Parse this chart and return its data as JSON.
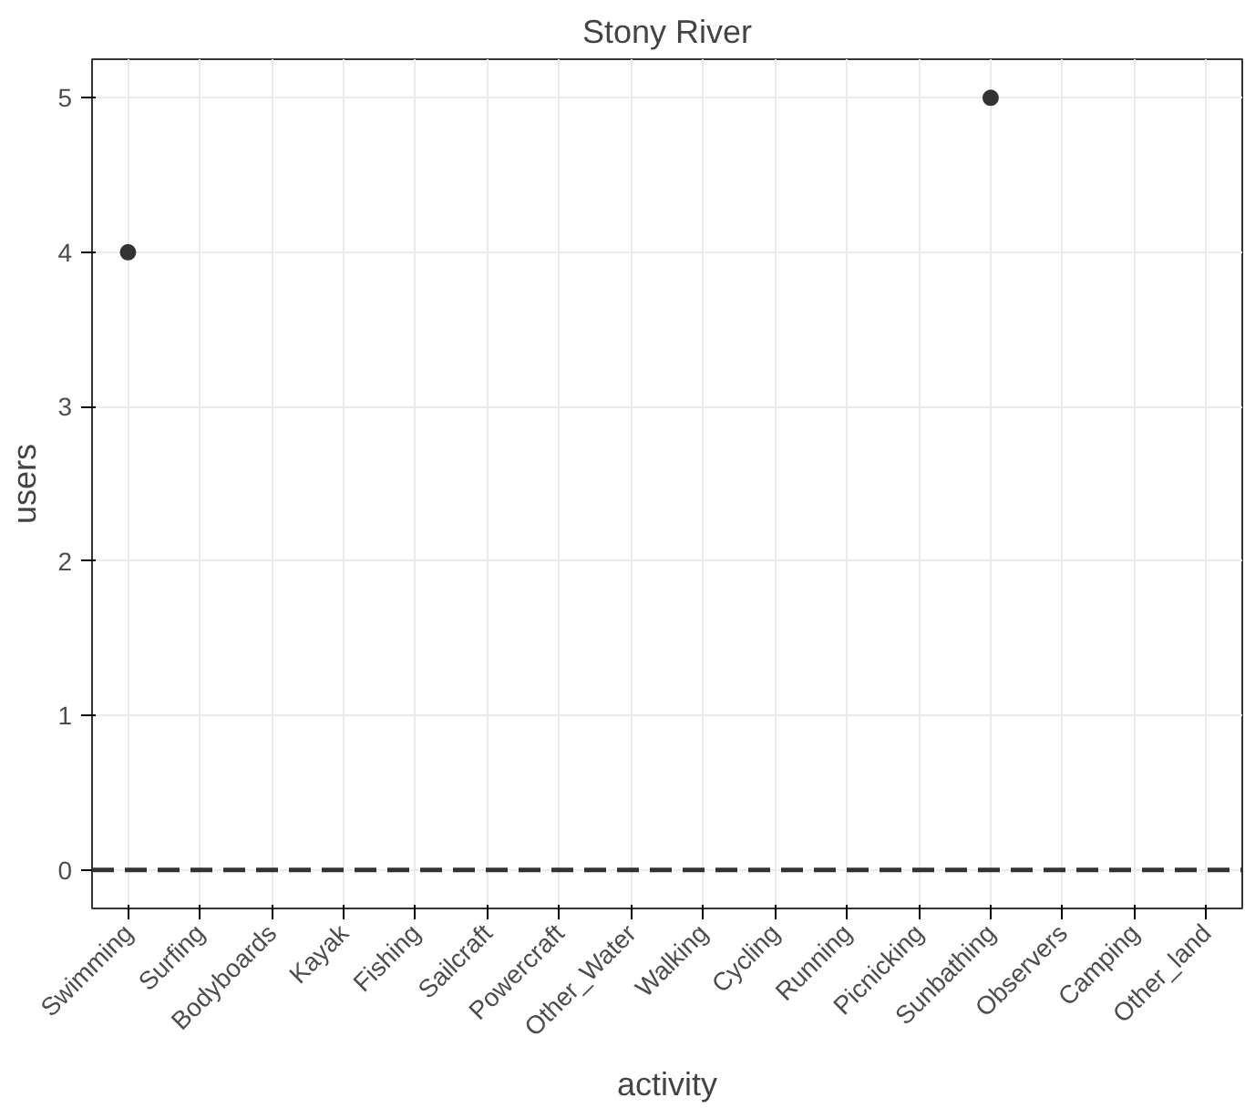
{
  "chart_data": {
    "type": "scatter",
    "title": "Stony River",
    "xlabel": "activity",
    "ylabel": "users",
    "categories": [
      "Swimming",
      "Surfing",
      "Bodyboards",
      "Kayak",
      "Fishing",
      "Sailcraft",
      "Powercraft",
      "Other_Water",
      "Walking",
      "Cycling",
      "Running",
      "Picnicking",
      "Sunbathing",
      "Observers",
      "Camping",
      "Other_land"
    ],
    "values": [
      4,
      null,
      null,
      null,
      null,
      null,
      null,
      null,
      null,
      null,
      null,
      null,
      5,
      null,
      null,
      null
    ],
    "color": "#333333",
    "marker": "circle",
    "ylim": [
      -0.25,
      5.25
    ],
    "yticks": [
      0,
      1,
      2,
      3,
      4,
      5
    ],
    "grid": true,
    "ref_lines": [
      {
        "axis": "y",
        "value": 0,
        "label": null,
        "color": "#333333",
        "line_style": "dashed"
      }
    ]
  }
}
